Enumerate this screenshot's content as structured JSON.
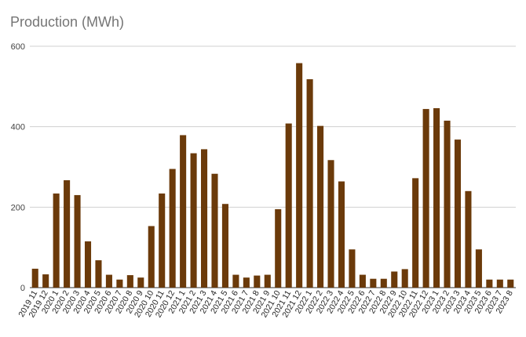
{
  "chart_data": {
    "type": "bar",
    "title": "Production (MWh)",
    "xlabel": "",
    "ylabel": "",
    "ylim": [
      0,
      600
    ],
    "yticks": [
      0,
      200,
      400,
      600
    ],
    "grid": true,
    "bar_color": "#6b3a0a",
    "gridline_color": "#d0d0d0",
    "categories": [
      "2019 11",
      "2019 12",
      "2020 1",
      "2020 2",
      "2020 3",
      "2020 4",
      "2020 5",
      "2020 6",
      "2020 7",
      "2020 8",
      "2020 9",
      "2020 10",
      "2020 11",
      "2020 12",
      "2021 1",
      "2021 2",
      "2021 3",
      "2021 4",
      "2021 5",
      "2021 6",
      "2021 7",
      "2021 8",
      "2021 9",
      "2021 10",
      "2021 11",
      "2021 12",
      "2022 1",
      "2022 2",
      "2022 3",
      "2022 4",
      "2022 5",
      "2022 6",
      "2022 7",
      "2022 8",
      "2022 9",
      "2022 10",
      "2022 11",
      "2022 12",
      "2023 1",
      "2023 2",
      "2023 3",
      "2023 4",
      "2023 5",
      "2023 6",
      "2023 7",
      "2023 8"
    ],
    "values": [
      47,
      33,
      234,
      267,
      230,
      115,
      68,
      32,
      20,
      31,
      25,
      153,
      234,
      295,
      379,
      334,
      344,
      283,
      208,
      32,
      25,
      30,
      32,
      195,
      408,
      558,
      518,
      402,
      317,
      264,
      95,
      32,
      22,
      22,
      40,
      46,
      272,
      444,
      446,
      415,
      368,
      240,
      95,
      20,
      20,
      20
    ]
  }
}
